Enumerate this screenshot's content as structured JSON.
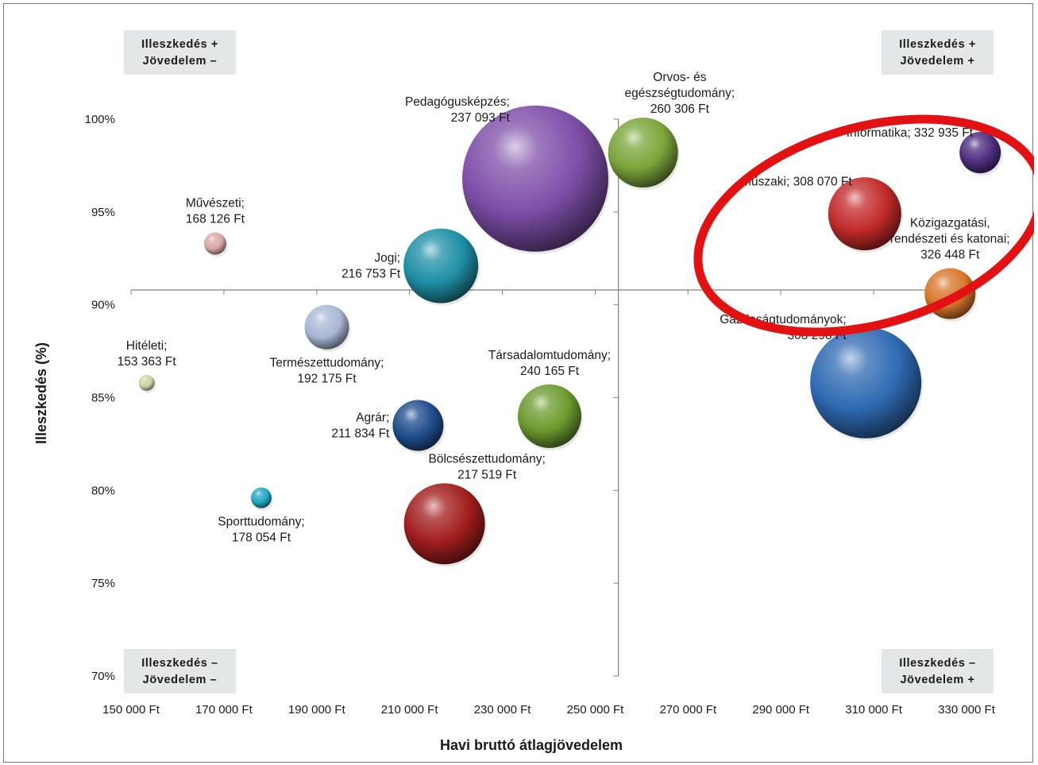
{
  "chart_data": {
    "type": "bubble",
    "xlabel": "Havi bruttó átlagjövedelem",
    "ylabel": "Illeszkedés (%)",
    "xlim": [
      150000,
      330000
    ],
    "ylim": [
      70,
      100
    ],
    "x_ticks": [
      150000,
      170000,
      190000,
      210000,
      230000,
      250000,
      270000,
      290000,
      310000,
      330000
    ],
    "x_tick_labels": [
      "150 000 Ft",
      "170 000 Ft",
      "190 000 Ft",
      "210 000 Ft",
      "230 000 Ft",
      "250 000 Ft",
      "270 000 Ft",
      "290 000 Ft",
      "310 000 Ft",
      "330 000 Ft"
    ],
    "y_ticks": [
      70,
      75,
      80,
      85,
      90,
      95,
      100
    ],
    "y_tick_labels": [
      "70%",
      "75%",
      "80%",
      "85%",
      "90%",
      "95%",
      "100%"
    ],
    "quadrant_center": {
      "x": 255000,
      "y": 90.8
    },
    "quadrants": [
      {
        "id": "top-left",
        "lines": [
          "Illeszkedés +",
          "Jövedelem –"
        ]
      },
      {
        "id": "top-right",
        "lines": [
          "Illeszkedés +",
          "Jövedelem +"
        ]
      },
      {
        "id": "bottom-left",
        "lines": [
          "Illeszkedés –",
          "Jövedelem –"
        ]
      },
      {
        "id": "bottom-right",
        "lines": [
          "Illeszkedés –",
          "Jövedelem +"
        ]
      }
    ],
    "series": [
      {
        "lines": [
          "Pedagógusképzés;",
          "237 093 Ft"
        ],
        "x": 237093,
        "y": 96.8,
        "size": 92,
        "color": "#7e4ea8",
        "label_pos": "upper-left"
      },
      {
        "lines": [
          "Orvos- és",
          "egészségtudomány;",
          "260 306 Ft"
        ],
        "x": 260306,
        "y": 98.2,
        "size": 44,
        "color": "#7aa53a",
        "label_pos": "upper-right"
      },
      {
        "lines": [
          "Informatika; 332 935 Ft"
        ],
        "x": 332935,
        "y": 98.2,
        "size": 26,
        "color": "#4d2d80",
        "label_pos": "upper-left"
      },
      {
        "lines": [
          "Műszaki; 308 070 Ft"
        ],
        "x": 308070,
        "y": 94.9,
        "size": 46,
        "color": "#c22a2a",
        "label_pos": "upper-left"
      },
      {
        "lines": [
          "Közigazgatási,",
          "rendészeti és katonai;",
          "326 448 Ft"
        ],
        "x": 326448,
        "y": 90.6,
        "size": 32,
        "color": "#d8762a",
        "label_pos": "upper"
      },
      {
        "lines": [
          "Gazdaságtudományok;",
          "308 298 Ft"
        ],
        "x": 308298,
        "y": 85.8,
        "size": 70,
        "color": "#2f6ab3",
        "label_pos": "upper-left"
      },
      {
        "lines": [
          "Művészeti;",
          "168 126 Ft"
        ],
        "x": 168126,
        "y": 93.3,
        "size": 14,
        "color": "#d9a7a7",
        "label_pos": "upper"
      },
      {
        "lines": [
          "Jogi;",
          "216 753 Ft"
        ],
        "x": 216753,
        "y": 92.1,
        "size": 47,
        "color": "#1e8fa5",
        "label_pos": "left"
      },
      {
        "lines": [
          "Hitéleti;",
          "153 363 Ft"
        ],
        "x": 153363,
        "y": 85.8,
        "size": 10,
        "color": "#c7d6a3",
        "label_pos": "upper"
      },
      {
        "lines": [
          "Természettudomány;",
          "192 175 Ft"
        ],
        "x": 192175,
        "y": 88.8,
        "size": 28,
        "color": "#a9b7d6",
        "label_pos": "below"
      },
      {
        "lines": [
          "Társadalomtudomány;",
          "240 165 Ft"
        ],
        "x": 240165,
        "y": 84.0,
        "size": 40,
        "color": "#6b9a2e",
        "label_pos": "upper"
      },
      {
        "lines": [
          "Agrár;",
          "211 834 Ft"
        ],
        "x": 211834,
        "y": 83.5,
        "size": 32,
        "color": "#1f4c8c",
        "label_pos": "left"
      },
      {
        "lines": [
          "Bölcsészettudomány;",
          "217 519 Ft"
        ],
        "x": 217519,
        "y": 78.2,
        "size": 51,
        "color": "#a11d1d",
        "label_pos": "upper-right"
      },
      {
        "lines": [
          "Sporttudomány;",
          "178 054 Ft"
        ],
        "x": 178054,
        "y": 79.6,
        "size": 13,
        "color": "#1fa7c0",
        "label_pos": "below"
      }
    ],
    "annotation": {
      "shape": "ellipse",
      "color": "#e31212"
    }
  }
}
